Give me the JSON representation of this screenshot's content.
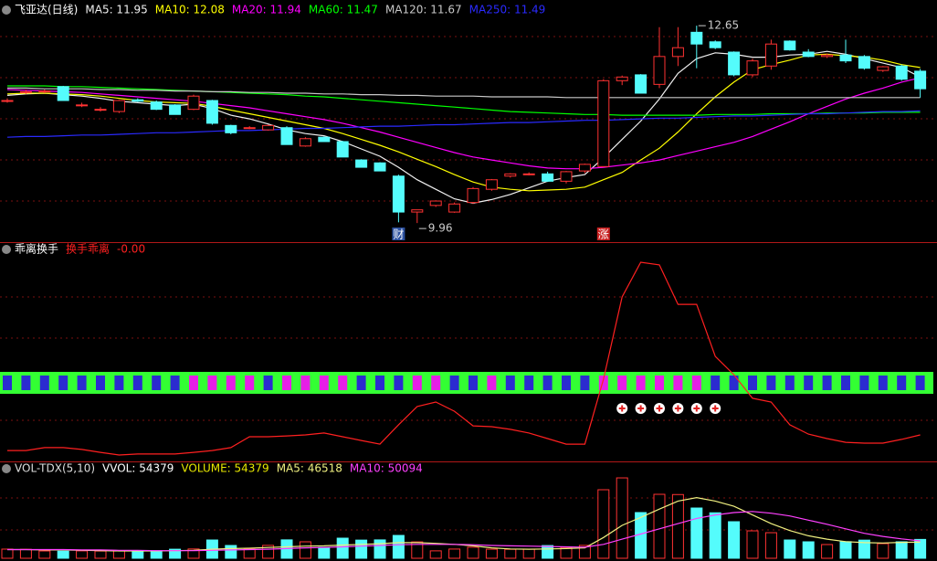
{
  "chart_data": [
    {
      "type": "candlestick",
      "title": "飞亚达(日线)",
      "ylim": [
        9.7,
        13.0
      ],
      "up_color": "#ff3232",
      "down_color": "#54fcfc",
      "ohlc": [
        [
          11.63,
          11.66,
          11.6,
          11.63
        ],
        [
          11.75,
          11.78,
          11.72,
          11.75
        ],
        [
          11.75,
          11.78,
          11.73,
          11.76
        ],
        [
          11.82,
          11.83,
          11.63,
          11.63
        ],
        [
          11.57,
          11.6,
          11.54,
          11.57
        ],
        [
          11.51,
          11.54,
          11.48,
          11.51
        ],
        [
          11.48,
          11.64,
          11.46,
          11.63
        ],
        [
          11.64,
          11.66,
          11.61,
          11.62
        ],
        [
          11.61,
          11.63,
          11.5,
          11.51
        ],
        [
          11.57,
          11.58,
          11.44,
          11.44
        ],
        [
          11.51,
          11.71,
          11.5,
          11.69
        ],
        [
          11.63,
          11.64,
          11.3,
          11.32
        ],
        [
          11.29,
          11.3,
          11.17,
          11.19
        ],
        [
          11.26,
          11.28,
          11.24,
          11.26
        ],
        [
          11.23,
          11.3,
          11.22,
          11.29
        ],
        [
          11.26,
          11.28,
          11.03,
          11.03
        ],
        [
          11.01,
          11.13,
          11.0,
          11.11
        ],
        [
          11.13,
          11.14,
          11.07,
          11.07
        ],
        [
          11.07,
          11.08,
          10.86,
          10.86
        ],
        [
          10.82,
          10.83,
          10.72,
          10.72
        ],
        [
          10.78,
          10.79,
          10.67,
          10.67
        ],
        [
          10.6,
          10.62,
          9.97,
          10.11
        ],
        [
          10.11,
          10.14,
          9.96,
          10.14
        ],
        [
          10.2,
          10.27,
          10.18,
          10.26
        ],
        [
          10.11,
          10.24,
          10.1,
          10.22
        ],
        [
          10.24,
          10.45,
          10.22,
          10.43
        ],
        [
          10.42,
          10.56,
          10.4,
          10.55
        ],
        [
          10.6,
          10.64,
          10.58,
          10.63
        ],
        [
          10.62,
          10.65,
          10.61,
          10.63
        ],
        [
          10.63,
          10.66,
          10.52,
          10.53
        ],
        [
          10.53,
          10.67,
          10.5,
          10.66
        ],
        [
          10.67,
          10.77,
          10.64,
          10.76
        ],
        [
          10.73,
          11.92,
          10.72,
          11.9
        ],
        [
          11.9,
          11.97,
          11.84,
          11.95
        ],
        [
          11.98,
          11.99,
          11.73,
          11.73
        ],
        [
          11.85,
          12.63,
          11.8,
          12.23
        ],
        [
          12.23,
          12.63,
          12.1,
          12.35
        ],
        [
          12.56,
          12.65,
          12.07,
          12.4
        ],
        [
          12.43,
          12.45,
          12.33,
          12.35
        ],
        [
          12.29,
          12.3,
          11.96,
          11.98
        ],
        [
          11.98,
          12.2,
          11.95,
          12.17
        ],
        [
          12.1,
          12.46,
          12.05,
          12.4
        ],
        [
          12.44,
          12.45,
          12.31,
          12.32
        ],
        [
          12.29,
          12.33,
          12.22,
          12.23
        ],
        [
          12.23,
          12.27,
          12.21,
          12.25
        ],
        [
          12.25,
          12.46,
          12.14,
          12.17
        ],
        [
          12.23,
          12.25,
          12.05,
          12.07
        ],
        [
          12.04,
          12.1,
          12.02,
          12.09
        ],
        [
          12.1,
          12.12,
          11.9,
          11.92
        ],
        [
          12.03,
          12.06,
          11.67,
          11.79
        ]
      ],
      "series": [
        {
          "name": "MA5: 11.95",
          "color": "#f0f0f0",
          "values": [
            11.7,
            11.72,
            11.73,
            11.71,
            11.69,
            11.66,
            11.62,
            11.6,
            11.58,
            11.56,
            11.58,
            11.52,
            11.43,
            11.38,
            11.31,
            11.23,
            11.18,
            11.15,
            11.07,
            10.97,
            10.87,
            10.72,
            10.55,
            10.42,
            10.29,
            10.23,
            10.28,
            10.35,
            10.44,
            10.53,
            10.58,
            10.62,
            10.85,
            11.1,
            11.35,
            11.65,
            12.0,
            12.2,
            12.28,
            12.26,
            12.22,
            12.22,
            12.25,
            12.26,
            12.3,
            12.26,
            12.2,
            12.14,
            12.08,
            11.95
          ]
        },
        {
          "name": "MA10: 12.08",
          "color": "#ffff00",
          "values": [
            11.72,
            11.73,
            11.73,
            11.72,
            11.71,
            11.69,
            11.66,
            11.63,
            11.61,
            11.6,
            11.59,
            11.55,
            11.5,
            11.45,
            11.4,
            11.35,
            11.3,
            11.25,
            11.18,
            11.1,
            11.02,
            10.93,
            10.83,
            10.73,
            10.62,
            10.52,
            10.45,
            10.42,
            10.4,
            10.41,
            10.42,
            10.45,
            10.55,
            10.65,
            10.82,
            10.98,
            11.2,
            11.45,
            11.68,
            11.88,
            12.05,
            12.12,
            12.18,
            12.25,
            12.26,
            12.24,
            12.22,
            12.18,
            12.12,
            12.08
          ]
        },
        {
          "name": "MA20: 11.94",
          "color": "#ff00ff",
          "values": [
            11.78,
            11.77,
            11.76,
            11.75,
            11.74,
            11.72,
            11.7,
            11.68,
            11.66,
            11.64,
            11.62,
            11.59,
            11.56,
            11.53,
            11.49,
            11.45,
            11.41,
            11.37,
            11.32,
            11.26,
            11.2,
            11.13,
            11.06,
            10.99,
            10.92,
            10.86,
            10.82,
            10.78,
            10.74,
            10.71,
            10.7,
            10.7,
            10.72,
            10.75,
            10.78,
            10.82,
            10.88,
            10.94,
            11.0,
            11.06,
            11.14,
            11.24,
            11.34,
            11.45,
            11.55,
            11.65,
            11.73,
            11.8,
            11.88,
            11.94
          ]
        },
        {
          "name": "MA60: 11.47",
          "color": "#00ff00",
          "values": [
            11.83,
            11.83,
            11.83,
            11.82,
            11.82,
            11.81,
            11.8,
            11.79,
            11.78,
            11.77,
            11.76,
            11.75,
            11.74,
            11.73,
            11.72,
            11.71,
            11.69,
            11.68,
            11.66,
            11.64,
            11.62,
            11.6,
            11.58,
            11.56,
            11.54,
            11.52,
            11.5,
            11.48,
            11.47,
            11.46,
            11.45,
            11.44,
            11.44,
            11.43,
            11.43,
            11.43,
            11.43,
            11.43,
            11.44,
            11.44,
            11.44,
            11.45,
            11.45,
            11.45,
            11.46,
            11.46,
            11.46,
            11.47,
            11.47,
            11.47
          ]
        },
        {
          "name": "MA120: 11.67",
          "color": "#c8c8c8",
          "values": [
            11.8,
            11.8,
            11.79,
            11.79,
            11.79,
            11.78,
            11.78,
            11.77,
            11.77,
            11.76,
            11.76,
            11.75,
            11.75,
            11.74,
            11.74,
            11.73,
            11.73,
            11.72,
            11.72,
            11.71,
            11.71,
            11.7,
            11.7,
            11.69,
            11.69,
            11.69,
            11.68,
            11.68,
            11.68,
            11.68,
            11.67,
            11.67,
            11.67,
            11.67,
            11.67,
            11.67,
            11.67,
            11.67,
            11.67,
            11.67,
            11.67,
            11.67,
            11.67,
            11.67,
            11.67,
            11.67,
            11.67,
            11.67,
            11.67,
            11.67
          ]
        },
        {
          "name": "MA250: 11.49",
          "color": "#2a2aff",
          "values": [
            11.13,
            11.14,
            11.14,
            11.15,
            11.16,
            11.16,
            11.17,
            11.18,
            11.19,
            11.19,
            11.2,
            11.21,
            11.22,
            11.22,
            11.23,
            11.24,
            11.25,
            11.25,
            11.26,
            11.27,
            11.28,
            11.28,
            11.29,
            11.3,
            11.3,
            11.31,
            11.32,
            11.33,
            11.33,
            11.34,
            11.35,
            11.36,
            11.36,
            11.37,
            11.38,
            11.39,
            11.39,
            11.4,
            11.41,
            11.42,
            11.42,
            11.43,
            11.44,
            11.45,
            11.45,
            11.46,
            11.47,
            11.48,
            11.48,
            11.49
          ]
        }
      ],
      "annotations": [
        {
          "label": "12.65",
          "value": 12.65,
          "at": "high"
        },
        {
          "label": "9.96",
          "value": 9.96,
          "at": "low"
        }
      ],
      "events": [
        null,
        null,
        null,
        null,
        null,
        null,
        null,
        null,
        null,
        null,
        null,
        null,
        null,
        null,
        null,
        null,
        null,
        null,
        null,
        null,
        null,
        {
          "label": "财",
          "color": "#2a4f9e"
        },
        null,
        null,
        null,
        null,
        null,
        null,
        null,
        null,
        null,
        null,
        {
          "label": "涨",
          "color": "#c82020"
        },
        null,
        null,
        null,
        null,
        null,
        null,
        null,
        null,
        null,
        null,
        null,
        null,
        null,
        null,
        null,
        null,
        null
      ]
    },
    {
      "type": "line",
      "title": "乖离换手",
      "readout": "-0.00",
      "ylim": [
        0,
        100
      ],
      "series": [
        {
          "name": "换手乖离",
          "color": "#ff2020",
          "values": [
            5.3,
            5.3,
            6.7,
            6.7,
            5.8,
            4.4,
            3.1,
            3.6,
            3.6,
            3.6,
            4.4,
            5.3,
            6.7,
            12.0,
            12.0,
            12.4,
            12.9,
            13.8,
            12.0,
            10.2,
            8.4,
            17.8,
            26.7,
            28.9,
            24.4,
            17.3,
            16.9,
            15.6,
            13.8,
            11.1,
            8.4,
            8.4,
            40.0,
            80.0,
            96.9,
            95.6,
            76.4,
            76.4,
            51.1,
            42.2,
            30.7,
            28.9,
            17.8,
            13.3,
            11.1,
            9.3,
            8.9,
            8.9,
            10.7,
            12.9
          ]
        }
      ],
      "strip": {
        "background": "#33ff33",
        "colors": [
          "#2b2bd0",
          "#e61ee6"
        ],
        "states": [
          0,
          0,
          0,
          0,
          0,
          0,
          0,
          0,
          0,
          0,
          1,
          1,
          1,
          1,
          0,
          1,
          1,
          1,
          1,
          0,
          0,
          0,
          1,
          1,
          0,
          0,
          1,
          0,
          0,
          0,
          0,
          0,
          1,
          1,
          1,
          1,
          1,
          1,
          0,
          0,
          0,
          0,
          0,
          0,
          0,
          0,
          0,
          0,
          0,
          0
        ]
      },
      "signals": [
        0,
        0,
        0,
        0,
        0,
        0,
        0,
        0,
        0,
        0,
        0,
        0,
        0,
        0,
        0,
        0,
        0,
        0,
        0,
        0,
        0,
        0,
        0,
        0,
        0,
        0,
        0,
        0,
        0,
        0,
        0,
        0,
        0,
        1,
        1,
        1,
        1,
        1,
        1,
        0,
        0,
        0,
        0,
        0,
        0,
        0,
        0,
        0,
        0,
        0
      ]
    },
    {
      "type": "bar",
      "title": "VOL-TDX(5,10)",
      "subtitle": "VVOL: 54379",
      "ylim": [
        0,
        240000
      ],
      "series": [
        {
          "name": "VOLUME: 54379",
          "color": "#e8e800",
          "values": [
            26400,
            25800,
            21100,
            20500,
            21300,
            20800,
            21600,
            20900,
            21700,
            26100,
            26800,
            52700,
            36900,
            26300,
            37200,
            53100,
            47500,
            31600,
            58000,
            52400,
            53000,
            65900,
            47200,
            21400,
            26600,
            31900,
            26200,
            25900,
            26500,
            36700,
            31300,
            37100,
            197800,
            232000,
            131900,
            184600,
            183900,
            145000,
            131200,
            105500,
            79100,
            73800,
            52700,
            47500,
            39600,
            47900,
            52300,
            42200,
            47600,
            54379
          ]
        },
        {
          "name": "MA5: 46518",
          "color": "#f0f080",
          "values": [
            25000,
            25000,
            24000,
            24000,
            23000,
            22000,
            21000,
            21000,
            21000,
            22000,
            23000,
            26000,
            28000,
            29000,
            31000,
            33000,
            35000,
            36000,
            38000,
            40000,
            42000,
            45000,
            45000,
            43000,
            40000,
            36000,
            30000,
            27000,
            26000,
            27000,
            28000,
            30000,
            60000,
            95000,
            118000,
            142000,
            165000,
            175000,
            165000,
            150000,
            125000,
            100000,
            80000,
            65000,
            55000,
            48000,
            45000,
            44000,
            46000,
            46518
          ]
        },
        {
          "name": "MA10: 50094",
          "color": "#ff40ff",
          "values": [
            25000,
            25000,
            25000,
            25000,
            24000,
            24000,
            23000,
            23000,
            22000,
            22000,
            22000,
            23000,
            24000,
            25000,
            26000,
            28000,
            30000,
            31000,
            33000,
            35000,
            37000,
            39000,
            40000,
            40000,
            40000,
            39000,
            37000,
            36000,
            35000,
            34000,
            33000,
            32000,
            40000,
            55000,
            70000,
            85000,
            100000,
            115000,
            125000,
            132000,
            135000,
            130000,
            122000,
            110000,
            98000,
            85000,
            72000,
            63000,
            56000,
            50094
          ]
        }
      ]
    }
  ]
}
